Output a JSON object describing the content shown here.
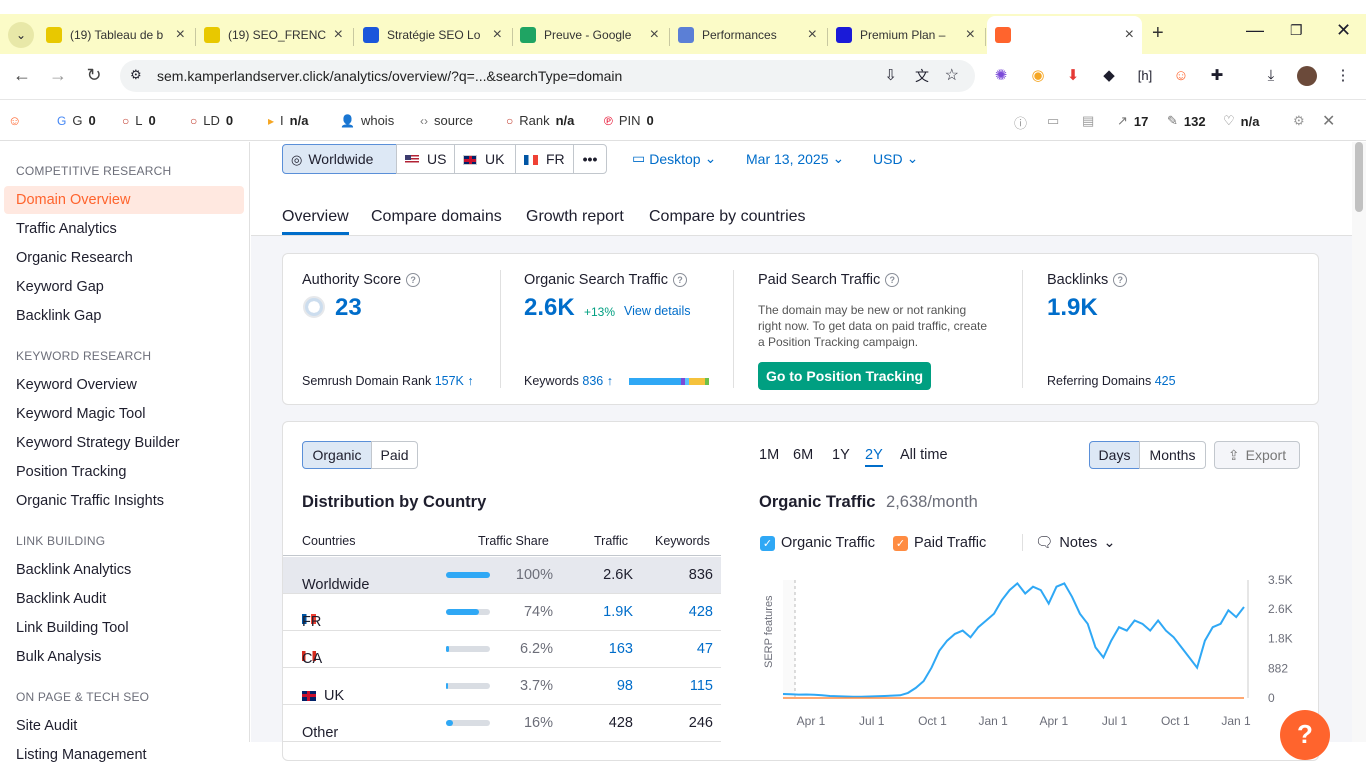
{
  "browser": {
    "tabs": [
      {
        "title": "(19) Tableau de b",
        "icon": "smile-icon",
        "color": "#e8c800"
      },
      {
        "title": "(19) SEO_FRENC",
        "icon": "smile-icon",
        "color": "#e8c800"
      },
      {
        "title": "Stratégie SEO Lo",
        "icon": "doc-icon",
        "color": "#1a56db"
      },
      {
        "title": "Preuve - Google",
        "icon": "drive-icon",
        "color": "#1fa463"
      },
      {
        "title": "Performances",
        "icon": "chart-icon",
        "color": "#5b7fd6"
      },
      {
        "title": "Premium Plan –",
        "icon": "star-icon",
        "color": "#1a1ad8"
      },
      {
        "title": "",
        "icon": "semrush-icon",
        "color": "#ff642d"
      }
    ],
    "url": "sem.kamperlandserver.click/analytics/overview/?q=...&searchType=domain"
  },
  "seoquake": {
    "items": [
      {
        "label": "G",
        "value": "0"
      },
      {
        "label": "L",
        "value": "0"
      },
      {
        "label": "LD",
        "value": "0"
      },
      {
        "label": "I",
        "value": "n/a"
      },
      {
        "label": "whois",
        "value": ""
      },
      {
        "label": "source",
        "value": ""
      },
      {
        "label": "Rank",
        "value": "n/a"
      },
      {
        "label": "PIN",
        "value": "0"
      }
    ],
    "right": [
      {
        "label": "",
        "value": "17"
      },
      {
        "label": "",
        "value": "132"
      },
      {
        "label": "",
        "value": "n/a"
      }
    ]
  },
  "sidebar": {
    "sections": [
      {
        "title": "COMPETITIVE RESEARCH",
        "items": [
          "Domain Overview",
          "Traffic Analytics",
          "Organic Research",
          "Keyword Gap",
          "Backlink Gap"
        ]
      },
      {
        "title": "KEYWORD RESEARCH",
        "items": [
          "Keyword Overview",
          "Keyword Magic Tool",
          "Keyword Strategy Builder",
          "Position Tracking",
          "Organic Traffic Insights"
        ]
      },
      {
        "title": "LINK BUILDING",
        "items": [
          "Backlink Analytics",
          "Backlink Audit",
          "Link Building Tool",
          "Bulk Analysis"
        ]
      },
      {
        "title": "ON PAGE & TECH SEO",
        "items": [
          "Site Audit",
          "Listing Management"
        ]
      }
    ]
  },
  "filters": {
    "databases": [
      "Worldwide",
      "US",
      "UK",
      "FR"
    ],
    "more": "•••",
    "device": "Desktop",
    "date": "Mar 13, 2025",
    "currency": "USD"
  },
  "report_tabs": [
    "Overview",
    "Compare domains",
    "Growth report",
    "Compare by countries"
  ],
  "metrics": {
    "authority": {
      "title": "Authority Score",
      "value": "23",
      "rank_label": "Semrush Domain Rank",
      "rank_value": "157K ↑"
    },
    "organic": {
      "title": "Organic Search Traffic",
      "value": "2.6K",
      "change": "+13%",
      "link": "View details",
      "kw_label": "Keywords",
      "kw_value": "836 ↑"
    },
    "paid": {
      "title": "Paid Search Traffic",
      "note": "The domain may be new or not ranking right now. To get data on paid traffic, create a Position Tracking campaign.",
      "button": "Go to Position Tracking"
    },
    "backlinks": {
      "title": "Backlinks",
      "value": "1.9K",
      "ref_label": "Referring Domains",
      "ref_value": "425"
    }
  },
  "distribution": {
    "toggle": [
      "Organic",
      "Paid"
    ],
    "title": "Distribution by Country",
    "headers": [
      "Countries",
      "Traffic Share",
      "Traffic",
      "Keywords"
    ],
    "rows": [
      {
        "country": "Worldwide",
        "flag": "",
        "share": "100%",
        "share_fraction": 1.0,
        "traffic": "2.6K",
        "keywords": "836"
      },
      {
        "country": "FR",
        "flag": "fr",
        "share": "74%",
        "share_fraction": 0.74,
        "traffic": "1.9K",
        "keywords": "428"
      },
      {
        "country": "CA",
        "flag": "ca",
        "share": "6.2%",
        "share_fraction": 0.062,
        "traffic": "163",
        "keywords": "47"
      },
      {
        "country": "UK",
        "flag": "uk",
        "share": "3.7%",
        "share_fraction": 0.037,
        "traffic": "98",
        "keywords": "115"
      },
      {
        "country": "Other",
        "flag": "",
        "share": "16%",
        "share_fraction": 0.16,
        "traffic": "428",
        "keywords": "246"
      }
    ]
  },
  "trend": {
    "ranges": [
      "1M",
      "6M",
      "1Y",
      "2Y",
      "All time"
    ],
    "selected_range": "2Y",
    "granularity": [
      "Days",
      "Months"
    ],
    "export": "Export",
    "title": "Organic Traffic",
    "subtitle": "2,638/month",
    "legend": [
      {
        "label": "Organic Traffic",
        "color": "#2fa8f5"
      },
      {
        "label": "Paid Traffic",
        "color": "#ff8c42"
      }
    ],
    "notes": "Notes",
    "serp_label": "SERP features"
  },
  "chart_data": {
    "type": "line",
    "x_ticks": [
      "Apr 1",
      "Jul 1",
      "Oct 1",
      "Jan 1",
      "Apr 1",
      "Jul 1",
      "Oct 1",
      "Jan 1"
    ],
    "y_ticks": [
      "3.5K",
      "2.6K",
      "1.8K",
      "882",
      "0"
    ],
    "ylim": [
      0,
      3500
    ],
    "series": [
      {
        "name": "Organic Traffic",
        "values": [
          120,
          110,
          100,
          105,
          95,
          80,
          60,
          50,
          45,
          40,
          40,
          45,
          50,
          60,
          70,
          80,
          150,
          300,
          500,
          900,
          1400,
          1700,
          1900,
          2000,
          1800,
          2100,
          2300,
          2500,
          2900,
          3200,
          3400,
          3100,
          3300,
          3200,
          2800,
          3300,
          3400,
          3000,
          2500,
          2200,
          1500,
          1200,
          1700,
          2100,
          2000,
          2300,
          2200,
          2000,
          2300,
          2000,
          1800,
          1500,
          1200,
          900,
          1700,
          2100,
          2200,
          2600,
          2400,
          2700
        ]
      },
      {
        "name": "Paid Traffic",
        "values": [
          0,
          0,
          0,
          0,
          0,
          0,
          0,
          0,
          0,
          0,
          0,
          0,
          0,
          0,
          0,
          0,
          0,
          0,
          0,
          0,
          0,
          0,
          0,
          0,
          0,
          0,
          0,
          0,
          0,
          0,
          0,
          0,
          0,
          0,
          0,
          0,
          0,
          0,
          0,
          0,
          0,
          0,
          0,
          0,
          0,
          0,
          0,
          0,
          0,
          0,
          0,
          0,
          0,
          0,
          0,
          0,
          0,
          0,
          0,
          0
        ]
      }
    ]
  },
  "help": "?"
}
